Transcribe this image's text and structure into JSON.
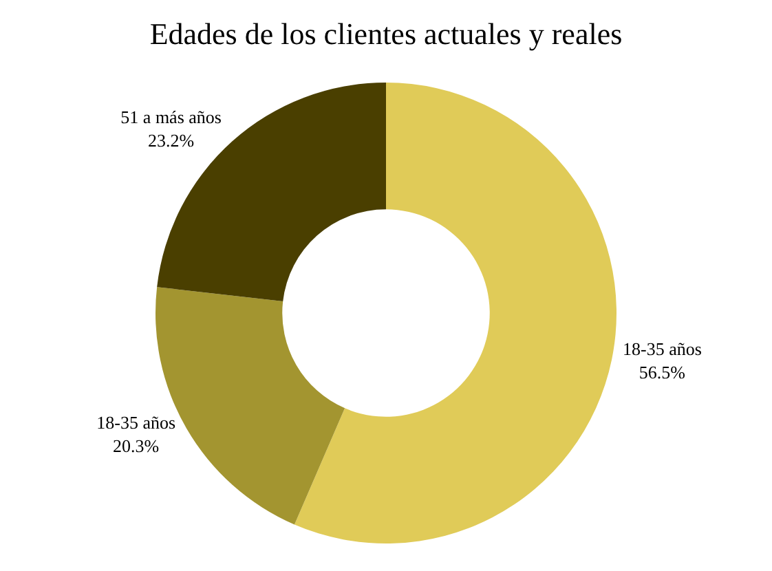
{
  "chart_data": {
    "type": "donut",
    "title": "Edades de los clientes actuales y reales",
    "categories": [
      "18-35 años",
      "18-35 años",
      "51 a más años"
    ],
    "values": [
      56.5,
      20.3,
      23.2
    ],
    "value_labels": [
      "56.5%",
      "20.3%",
      "23.2%"
    ],
    "colors": [
      "#e0cb58",
      "#a39530",
      "#4a3f00"
    ],
    "legend": false
  }
}
